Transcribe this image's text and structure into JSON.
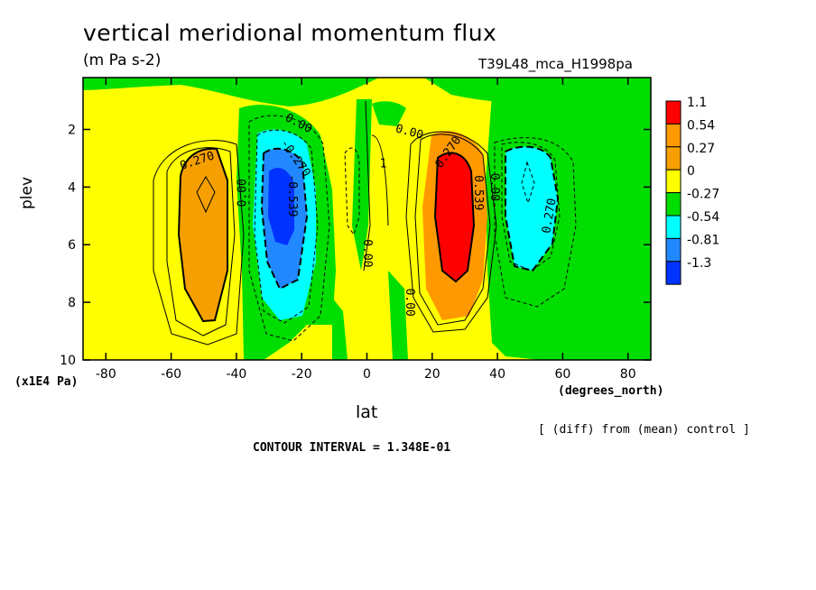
{
  "title": "vertical meridional momentum flux",
  "units": "(m Pa s-2)",
  "run_label": "T39L48_mca_H1998pa",
  "y_axis_units": "(x1E4 Pa)",
  "x_axis_units": "(degrees_north)",
  "diff_note": "[ (diff) from (mean) control ]",
  "contour_interval": "CONTOUR INTERVAL = 1.348E-01",
  "chart_data": {
    "type": "heatmap",
    "xlabel": "lat",
    "ylabel": "plev",
    "xlim": [
      -87,
      87
    ],
    "ylim": [
      10,
      0.2
    ],
    "x_ticks": [
      -80,
      -60,
      -40,
      -20,
      0,
      20,
      40,
      60,
      80
    ],
    "y_ticks": [
      2,
      4,
      6,
      8,
      10
    ],
    "colorbar": {
      "labels": [
        "1.1",
        "0.54",
        "0.27",
        "0",
        "-0.27",
        "-0.54",
        "-0.81",
        "-1.3"
      ],
      "colors": [
        "#ff0000",
        "#ff9900",
        "#f5a000",
        "#ffff00",
        "#00dd00",
        "#00ffff",
        "#2288ff",
        "#0033ff"
      ]
    },
    "features": [
      {
        "name": "southern-positive-lobe",
        "lat": -50,
        "plev": 4.2,
        "value": 0.27,
        "color": "#ff9900"
      },
      {
        "name": "southern-negative-core",
        "lat": -28,
        "plev": 4.2,
        "value": -1.3,
        "color": "#0033ff"
      },
      {
        "name": "northern-positive-core",
        "lat": 28,
        "plev": 4.8,
        "value": 1.1,
        "color": "#ff0000"
      },
      {
        "name": "northern-negative-lobe",
        "lat": 50,
        "plev": 4.3,
        "value": -0.54,
        "color": "#00ffff"
      }
    ],
    "contour_labels": [
      {
        "text": "0.270",
        "lat": -52,
        "plev": 3.1,
        "angle": -18
      },
      {
        "text": "0.00",
        "lat": -38,
        "plev": 4.2,
        "angle": -90
      },
      {
        "text": "0.00",
        "lat": -21,
        "plev": 1.8,
        "angle": 28
      },
      {
        "text": "-0.270",
        "lat": -22,
        "plev": 3.0,
        "angle": 55
      },
      {
        "text": "-0.539",
        "lat": -23,
        "plev": 4.3,
        "angle": 90
      },
      {
        "text": "0.00",
        "lat": 0,
        "plev": 6.3,
        "angle": 90
      },
      {
        "text": "1",
        "lat": 5,
        "plev": 3.2,
        "angle": 0
      },
      {
        "text": "0.00",
        "lat": 13,
        "plev": 2.1,
        "angle": 15
      },
      {
        "text": "0.00",
        "lat": 13,
        "plev": 8.0,
        "angle": 90
      },
      {
        "text": "0.270",
        "lat": 25,
        "plev": 2.8,
        "angle": -55
      },
      {
        "text": "0.539",
        "lat": 34,
        "plev": 4.2,
        "angle": 90
      },
      {
        "text": "0.00",
        "lat": 39,
        "plev": 4.0,
        "angle": 90
      },
      {
        "text": "0.270",
        "lat": 56,
        "plev": 5.0,
        "angle": -80
      }
    ]
  }
}
